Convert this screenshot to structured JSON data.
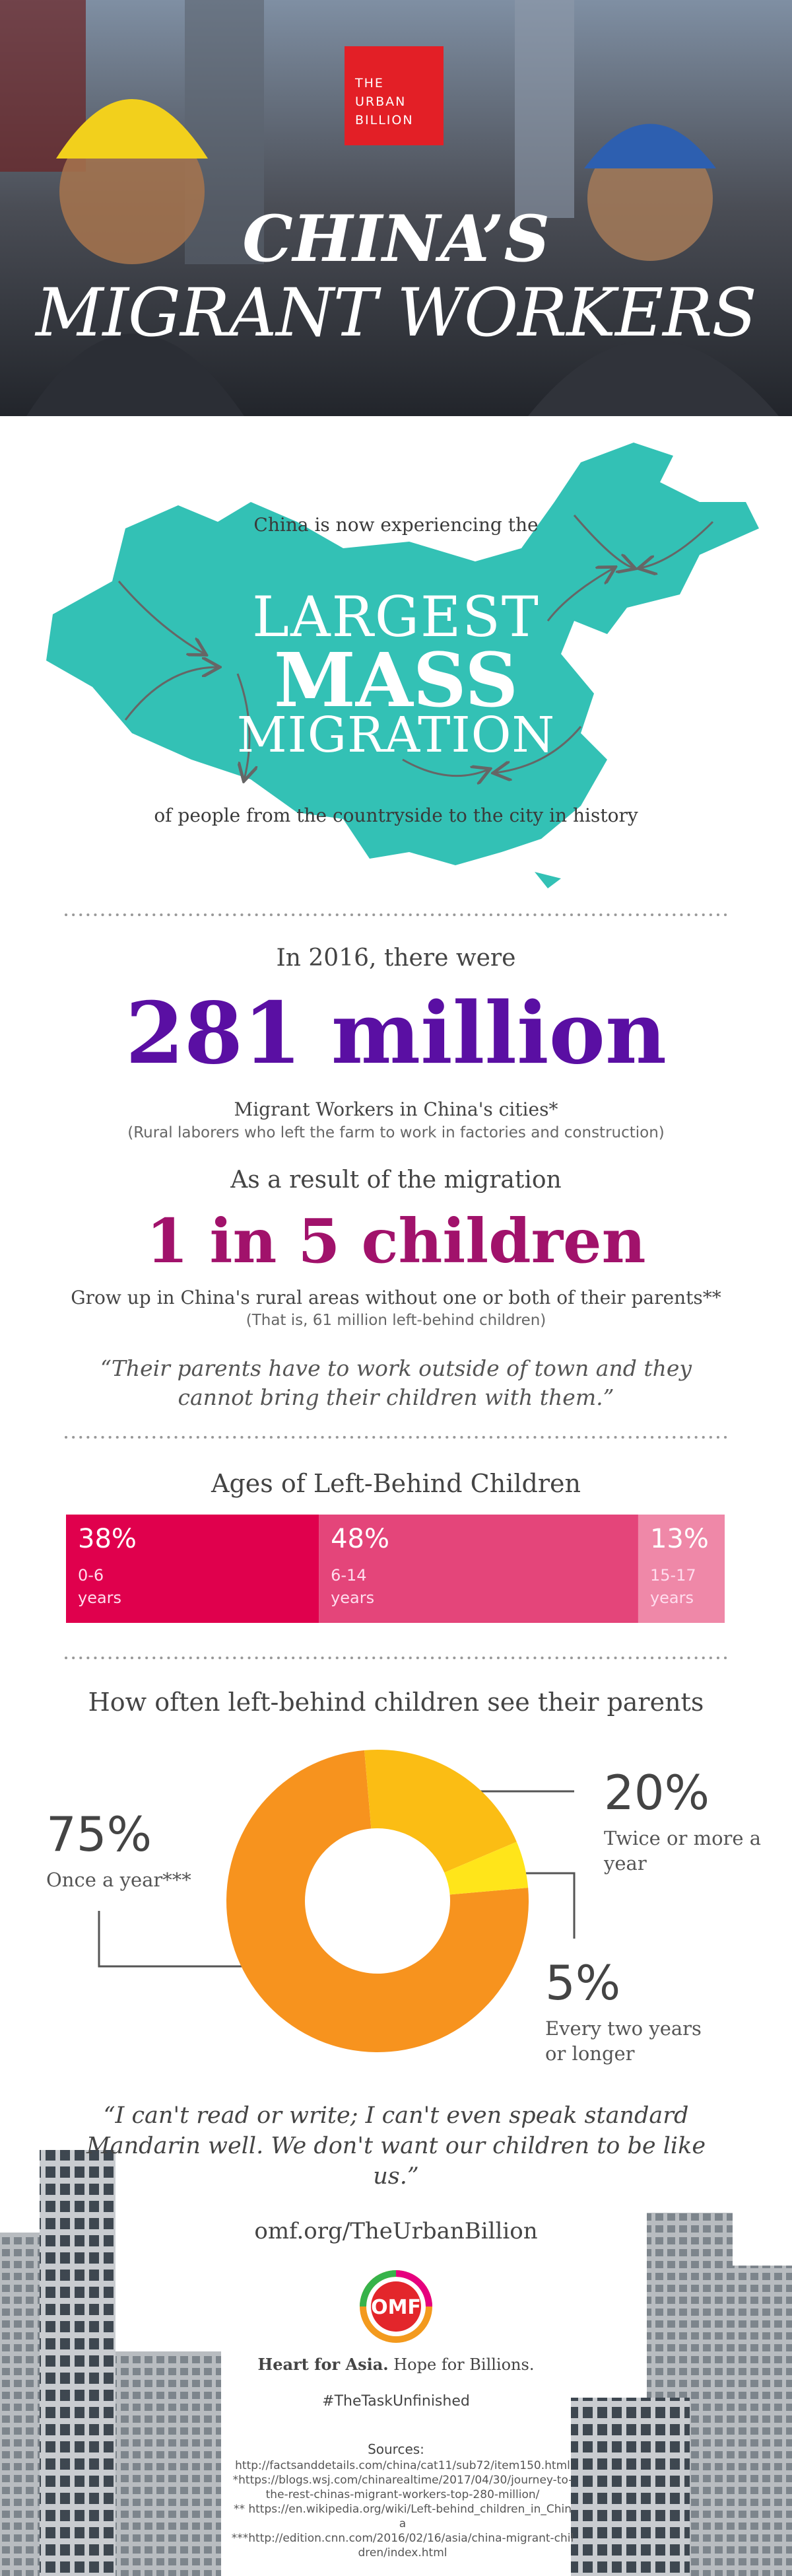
{
  "header": {
    "logo": "THE URBAN BILLION",
    "title_line1": "CHINA’S",
    "title_line2": "MIGRANT WORKERS"
  },
  "map": {
    "intro": "China is now experiencing the",
    "line1": "LARGEST",
    "line2": "MASS",
    "line3": "MIGRATION",
    "outro": "of people from the countryside to the city in history"
  },
  "stats": {
    "intro": "In 2016, there were",
    "headline": "281 million",
    "caption": "Migrant Workers in China's cities*",
    "note": "(Rural laborers who left the farm to work in factories and construction)"
  },
  "children": {
    "intro": "As a result of the migration",
    "headline": "1 in 5 children",
    "caption": "Grow up in China's rural areas without one or both of their parents**",
    "note": "(That is, 61 million left-behind children)",
    "quote": "“Their parents have to work outside of town and they cannot bring their children with them.”"
  },
  "chart_data": [
    {
      "type": "bar",
      "title": "Ages of Left-Behind Children",
      "categories": [
        "0-6 years",
        "6-14 years",
        "15-17 years"
      ],
      "values": [
        38,
        48,
        13
      ],
      "value_labels": [
        "38%",
        "48%",
        "13%"
      ],
      "colors": [
        "#e0004d",
        "#e4457a",
        "#ef88a8"
      ]
    },
    {
      "type": "pie",
      "title": "How often left-behind children see their parents",
      "categories": [
        "Once a year***",
        "Twice or more a year",
        "Every two years or longer"
      ],
      "values": [
        75,
        20,
        5
      ],
      "value_labels": [
        "75%",
        "20%",
        "5%"
      ],
      "colors": [
        "#f7931e",
        "#fbbd14",
        "#ffe51a"
      ]
    }
  ],
  "quote2": "“I can't read or write; I can't even speak standard Mandarin well. We don't want our children to be like us.”",
  "footer": {
    "url": "omf.org/TheUrbanBillion",
    "logo": "OMF",
    "tagline_bold": "Heart for Asia.",
    "tagline": "Hope for Billions.",
    "hashtag": "#TheTaskUnfinished",
    "sources_title": "Sources:",
    "sources": [
      "http://factsanddetails.com/china/cat11/sub72/item150.html",
      "*https://blogs.wsj.com/chinarealtime/2017/04/30/journey-to-the-rest-chinas-migrant-workers-top-280-million/",
      "** https://en.wikipedia.org/wiki/Left-behind_children_in_China",
      "***http://edition.cnn.com/2016/02/16/asia/china-migrant-children/index.html"
    ]
  }
}
